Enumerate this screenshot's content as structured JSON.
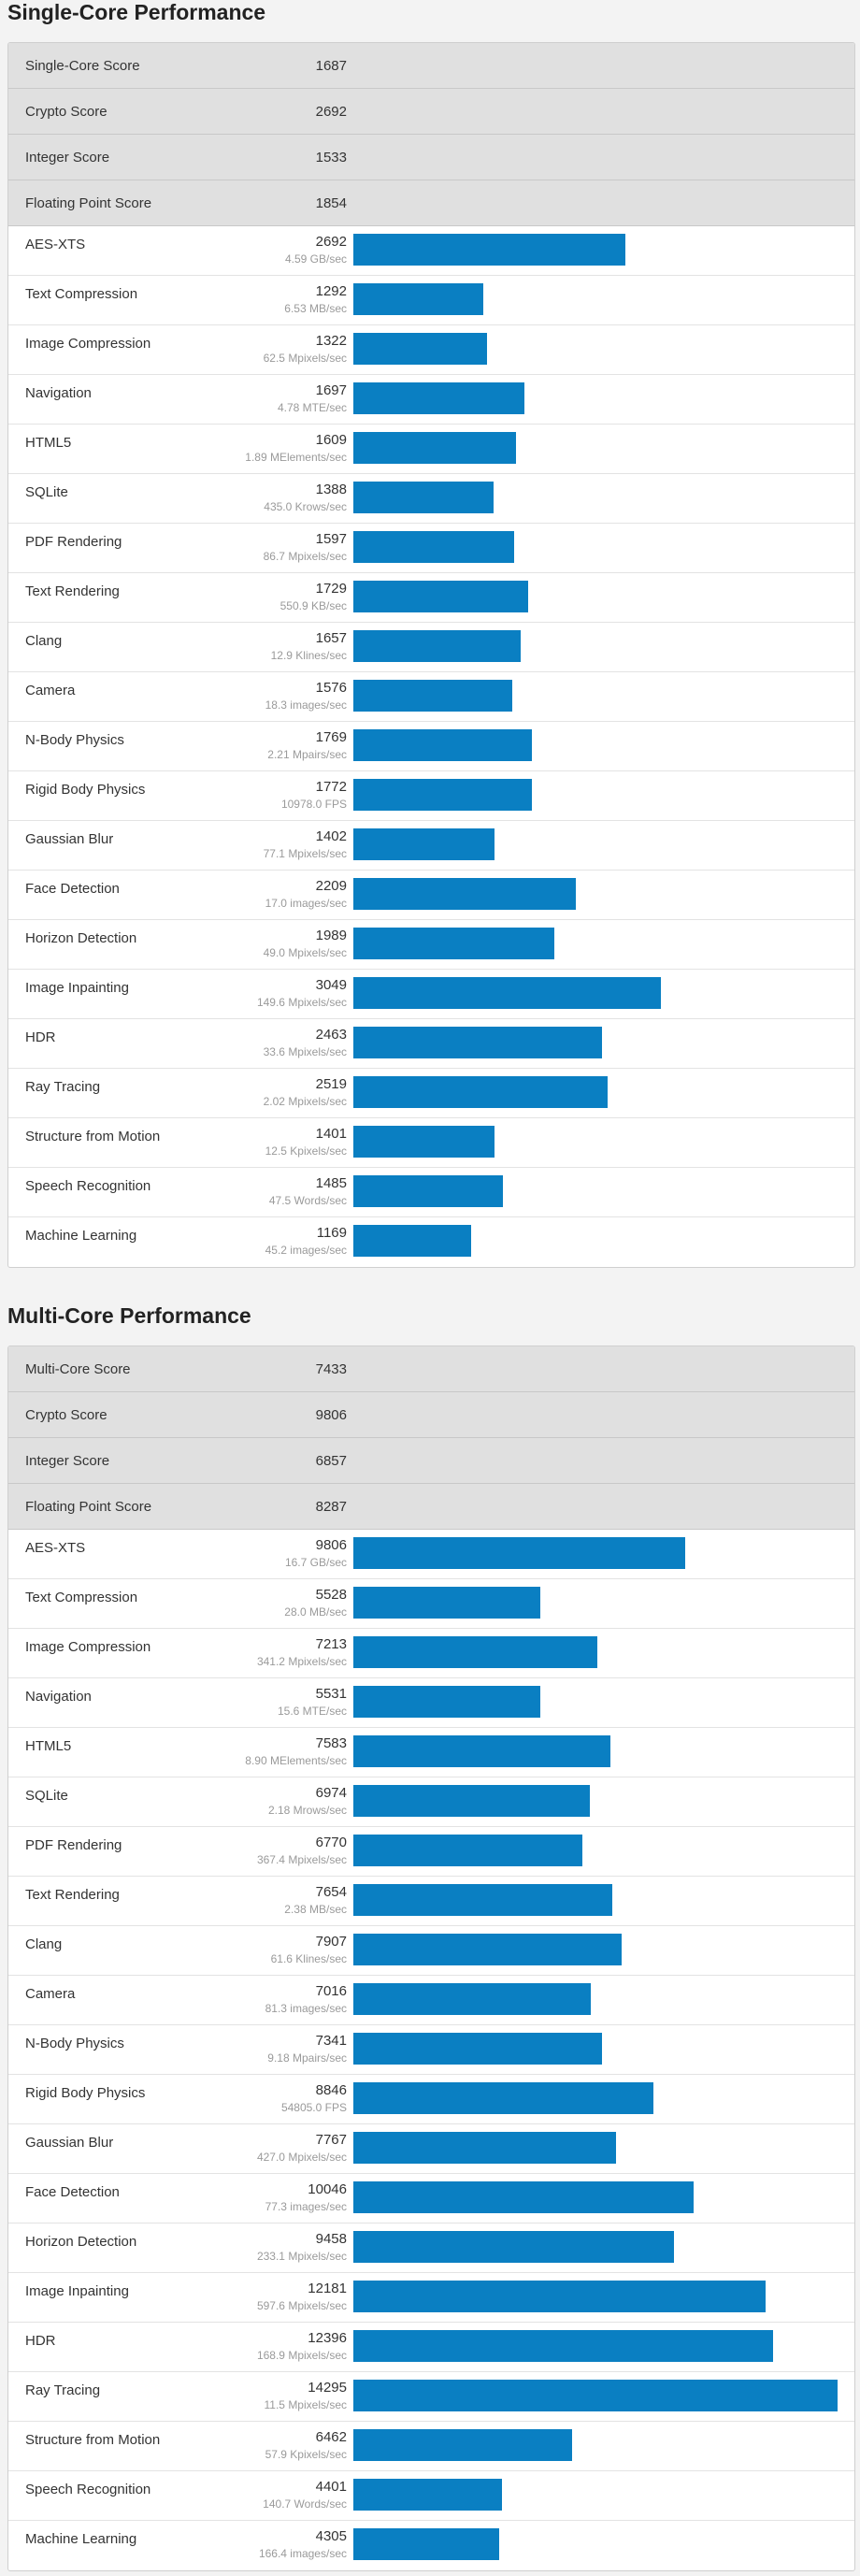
{
  "bar_color": "#0a7fc2",
  "sections": [
    {
      "title": "Single-Core Performance",
      "bar_max": 4800,
      "scores": [
        {
          "label": "Single-Core Score",
          "value": "1687"
        },
        {
          "label": "Crypto Score",
          "value": "2692"
        },
        {
          "label": "Integer Score",
          "value": "1533"
        },
        {
          "label": "Floating Point Score",
          "value": "1854"
        }
      ],
      "benchmarks": [
        {
          "name": "AES-XTS",
          "score": 2692,
          "detail": "4.59 GB/sec"
        },
        {
          "name": "Text Compression",
          "score": 1292,
          "detail": "6.53 MB/sec"
        },
        {
          "name": "Image Compression",
          "score": 1322,
          "detail": "62.5 Mpixels/sec"
        },
        {
          "name": "Navigation",
          "score": 1697,
          "detail": "4.78 MTE/sec"
        },
        {
          "name": "HTML5",
          "score": 1609,
          "detail": "1.89 MElements/sec"
        },
        {
          "name": "SQLite",
          "score": 1388,
          "detail": "435.0 Krows/sec"
        },
        {
          "name": "PDF Rendering",
          "score": 1597,
          "detail": "86.7 Mpixels/sec"
        },
        {
          "name": "Text Rendering",
          "score": 1729,
          "detail": "550.9 KB/sec"
        },
        {
          "name": "Clang",
          "score": 1657,
          "detail": "12.9 Klines/sec"
        },
        {
          "name": "Camera",
          "score": 1576,
          "detail": "18.3 images/sec"
        },
        {
          "name": "N-Body Physics",
          "score": 1769,
          "detail": "2.21 Mpairs/sec"
        },
        {
          "name": "Rigid Body Physics",
          "score": 1772,
          "detail": "10978.0 FPS"
        },
        {
          "name": "Gaussian Blur",
          "score": 1402,
          "detail": "77.1 Mpixels/sec"
        },
        {
          "name": "Face Detection",
          "score": 2209,
          "detail": "17.0 images/sec"
        },
        {
          "name": "Horizon Detection",
          "score": 1989,
          "detail": "49.0 Mpixels/sec"
        },
        {
          "name": "Image Inpainting",
          "score": 3049,
          "detail": "149.6 Mpixels/sec"
        },
        {
          "name": "HDR",
          "score": 2463,
          "detail": "33.6 Mpixels/sec"
        },
        {
          "name": "Ray Tracing",
          "score": 2519,
          "detail": "2.02 Mpixels/sec"
        },
        {
          "name": "Structure from Motion",
          "score": 1401,
          "detail": "12.5 Kpixels/sec"
        },
        {
          "name": "Speech Recognition",
          "score": 1485,
          "detail": "47.5 Words/sec"
        },
        {
          "name": "Machine Learning",
          "score": 1169,
          "detail": "45.2 images/sec"
        }
      ]
    },
    {
      "title": "Multi-Core Performance",
      "bar_max": 14295,
      "scores": [
        {
          "label": "Multi-Core Score",
          "value": "7433"
        },
        {
          "label": "Crypto Score",
          "value": "9806"
        },
        {
          "label": "Integer Score",
          "value": "6857"
        },
        {
          "label": "Floating Point Score",
          "value": "8287"
        }
      ],
      "benchmarks": [
        {
          "name": "AES-XTS",
          "score": 9806,
          "detail": "16.7 GB/sec"
        },
        {
          "name": "Text Compression",
          "score": 5528,
          "detail": "28.0 MB/sec"
        },
        {
          "name": "Image Compression",
          "score": 7213,
          "detail": "341.2 Mpixels/sec"
        },
        {
          "name": "Navigation",
          "score": 5531,
          "detail": "15.6 MTE/sec"
        },
        {
          "name": "HTML5",
          "score": 7583,
          "detail": "8.90 MElements/sec"
        },
        {
          "name": "SQLite",
          "score": 6974,
          "detail": "2.18 Mrows/sec"
        },
        {
          "name": "PDF Rendering",
          "score": 6770,
          "detail": "367.4 Mpixels/sec"
        },
        {
          "name": "Text Rendering",
          "score": 7654,
          "detail": "2.38 MB/sec"
        },
        {
          "name": "Clang",
          "score": 7907,
          "detail": "61.6 Klines/sec"
        },
        {
          "name": "Camera",
          "score": 7016,
          "detail": "81.3 images/sec"
        },
        {
          "name": "N-Body Physics",
          "score": 7341,
          "detail": "9.18 Mpairs/sec"
        },
        {
          "name": "Rigid Body Physics",
          "score": 8846,
          "detail": "54805.0 FPS"
        },
        {
          "name": "Gaussian Blur",
          "score": 7767,
          "detail": "427.0 Mpixels/sec"
        },
        {
          "name": "Face Detection",
          "score": 10046,
          "detail": "77.3 images/sec"
        },
        {
          "name": "Horizon Detection",
          "score": 9458,
          "detail": "233.1 Mpixels/sec"
        },
        {
          "name": "Image Inpainting",
          "score": 12181,
          "detail": "597.6 Mpixels/sec"
        },
        {
          "name": "HDR",
          "score": 12396,
          "detail": "168.9 Mpixels/sec"
        },
        {
          "name": "Ray Tracing",
          "score": 14295,
          "detail": "11.5 Mpixels/sec"
        },
        {
          "name": "Structure from Motion",
          "score": 6462,
          "detail": "57.9 Kpixels/sec"
        },
        {
          "name": "Speech Recognition",
          "score": 4401,
          "detail": "140.7 Words/sec"
        },
        {
          "name": "Machine Learning",
          "score": 4305,
          "detail": "166.4 images/sec"
        }
      ]
    }
  ]
}
